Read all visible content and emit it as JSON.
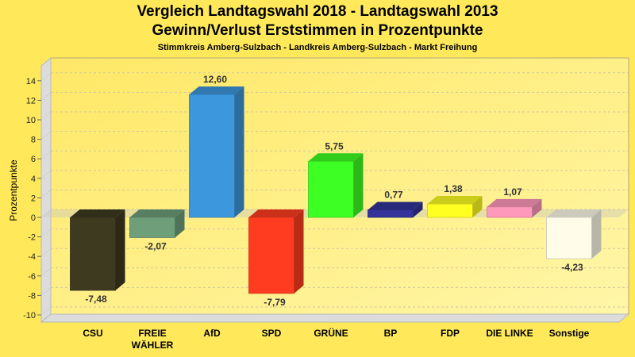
{
  "chart_data": {
    "type": "bar",
    "title": "Vergleich Landtagswahl 2018 - Landtagswahl 2013",
    "subtitle": "Gewinn/Verlust Erststimmen in Prozentpunkte",
    "subsubtitle": "Stimmkreis Amberg-Sulzbach - Landkreis Amberg-Sulzbach - Markt Freihung",
    "xlabel": "",
    "ylabel": "Prozentpunkte",
    "ylim": [
      -10,
      14
    ],
    "yticks": [
      14,
      12,
      10,
      8,
      6,
      4,
      2,
      0,
      -2,
      -4,
      -6,
      -8,
      -10
    ],
    "grid": true,
    "categories": [
      "CSU",
      "FREIE WÄHLER",
      "AfD",
      "SPD",
      "GRÜNE",
      "BP",
      "FDP",
      "DIE LINKE",
      "Sonstige"
    ],
    "category_lines": [
      [
        "CSU"
      ],
      [
        "FREIE",
        "WÄHLER"
      ],
      [
        "AfD"
      ],
      [
        "SPD"
      ],
      [
        "GRÜNE"
      ],
      [
        "BP"
      ],
      [
        "FDP"
      ],
      [
        "DIE LINKE"
      ],
      [
        "Sonstige"
      ]
    ],
    "values": [
      -7.48,
      -2.07,
      12.6,
      -7.79,
      5.75,
      0.77,
      1.38,
      1.07,
      -4.23
    ],
    "value_labels": [
      "-7,48",
      "-2,07",
      "12,60",
      "-7,79",
      "5,75",
      "0,77",
      "1,38",
      "1,07",
      "-4,23"
    ],
    "colors": [
      "#3d3a20",
      "#6e9e7a",
      "#3d97dc",
      "#ff3c20",
      "#3eff24",
      "#33339a",
      "#ffff22",
      "#ff99bb",
      "#fffdea"
    ]
  }
}
